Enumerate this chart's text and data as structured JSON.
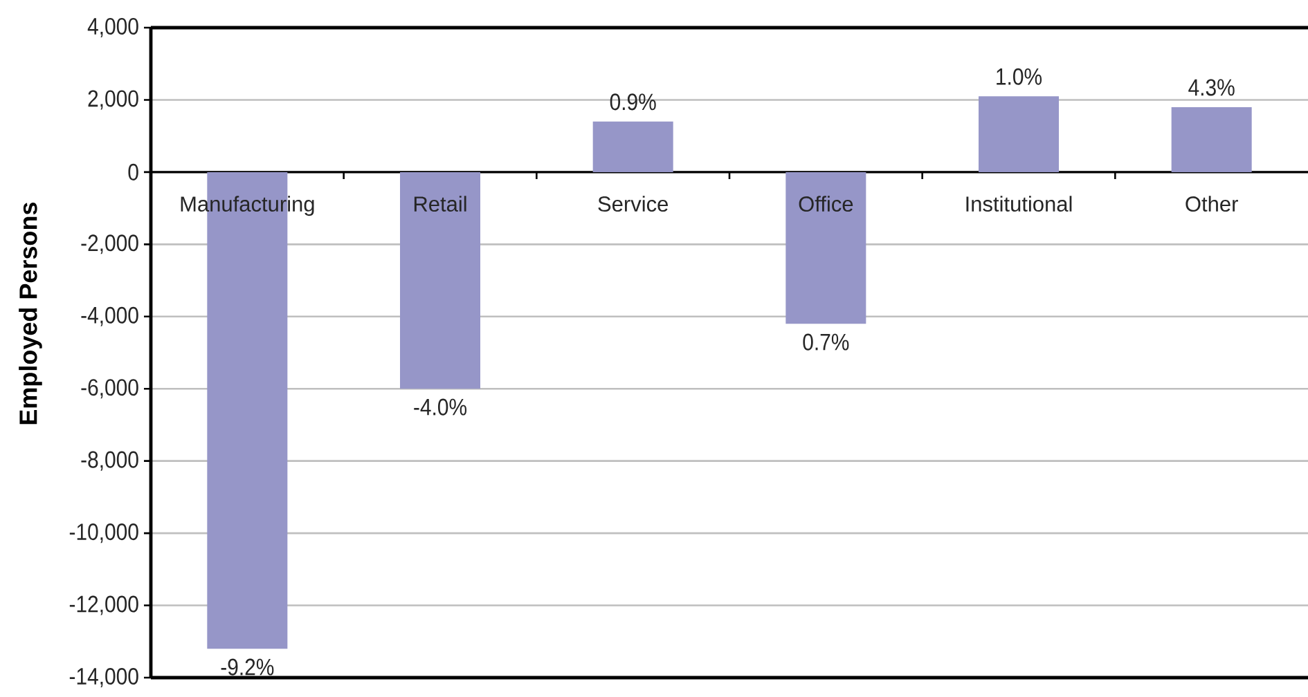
{
  "chart_data": {
    "type": "bar",
    "ylabel": "Employed Persons",
    "categories": [
      "Manufacturing",
      "Retail",
      "Service",
      "Office",
      "Institutional",
      "Other"
    ],
    "values": [
      -13200,
      -6000,
      1400,
      -4200,
      2100,
      1800
    ],
    "color": "#9696c8",
    "ylim": [
      -14000,
      4000
    ],
    "yticks": [
      {
        "value": -14000,
        "label": "-14,000"
      },
      {
        "value": -12000,
        "label": "-12,000"
      },
      {
        "value": -10000,
        "label": "-10,000"
      },
      {
        "value": -8000,
        "label": "-8,000"
      },
      {
        "value": -6000,
        "label": "-6,000"
      },
      {
        "value": -4000,
        "label": "-4,000"
      },
      {
        "value": -2000,
        "label": "-2,000"
      },
      0,
      {
        "value": 2000,
        "label": "2,000"
      },
      {
        "value": 4000,
        "label": "4,000"
      }
    ],
    "grid": "y",
    "annotations": [
      {
        "text": "-9.2%",
        "x": "Manufacturing",
        "y": -13200
      },
      {
        "text": "-4.0%",
        "x": "Retail",
        "y": -6000
      },
      {
        "text": "0.9%",
        "x": "Service",
        "y": 1400
      },
      {
        "text": "0.7%",
        "x": "Office",
        "y": -4200
      },
      {
        "text": "1.0%",
        "x": "Institutional",
        "y": 2100
      },
      {
        "text": "4.3%",
        "x": "Other",
        "y": 1800
      }
    ]
  }
}
